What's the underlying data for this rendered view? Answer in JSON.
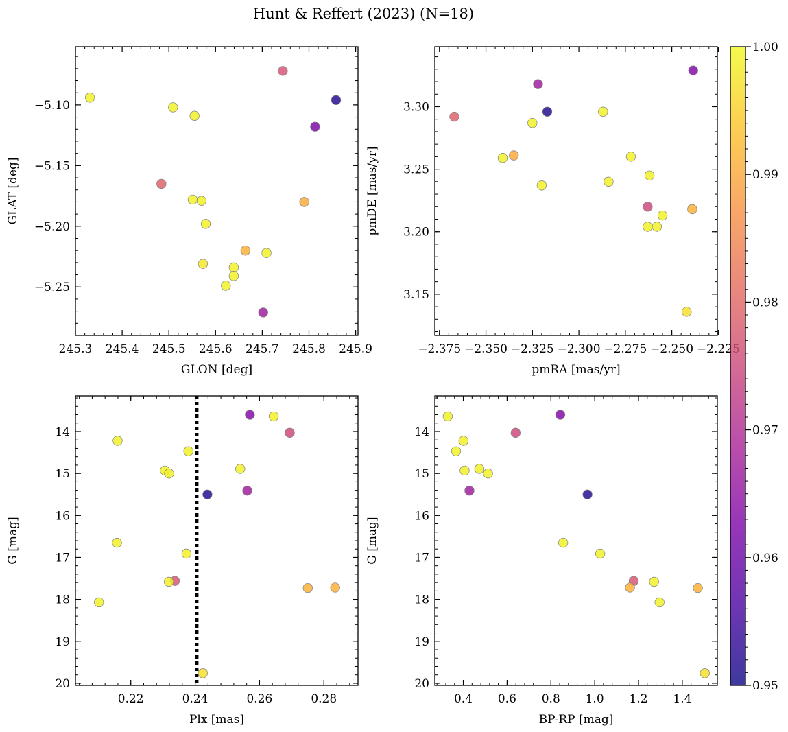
{
  "figure": {
    "title": "Hunt & Reffert (2023) (N=18)",
    "colorbar": {
      "cmap": "plasma",
      "vmin": 0.95,
      "vmax": 1.0,
      "ticks": [
        "0.95",
        "0.96",
        "0.97",
        "0.98",
        "0.99",
        "1.00"
      ]
    }
  },
  "chart_data": [
    {
      "type": "scatter",
      "id": "glon_glat",
      "title": "",
      "xlabel": "GLON [deg]",
      "ylabel": "GLAT [deg]",
      "xlim": [
        245.3,
        245.905
      ],
      "ylim": [
        -5.29,
        -5.052
      ],
      "y_inverted": false,
      "xticks": [
        245.3,
        245.4,
        245.5,
        245.6,
        245.7,
        245.8,
        245.9
      ],
      "xticklabels": [
        "245.3",
        "245.4",
        "245.5",
        "245.6",
        "245.7",
        "245.8",
        "245.9"
      ],
      "yticks": [
        -5.1,
        -5.15,
        -5.2,
        -5.25
      ],
      "yticklabels": [
        "−5.10",
        "−5.15",
        "−5.20",
        "−5.25"
      ],
      "points": [
        {
          "x": 245.331,
          "y": -5.094,
          "c": 0.999
        },
        {
          "x": 245.509,
          "y": -5.102,
          "c": 0.999
        },
        {
          "x": 245.555,
          "y": -5.109,
          "c": 0.999
        },
        {
          "x": 245.744,
          "y": -5.072,
          "c": 0.977
        },
        {
          "x": 245.858,
          "y": -5.096,
          "c": 0.952
        },
        {
          "x": 245.813,
          "y": -5.118,
          "c": 0.962
        },
        {
          "x": 245.484,
          "y": -5.165,
          "c": 0.979
        },
        {
          "x": 245.551,
          "y": -5.178,
          "c": 0.999
        },
        {
          "x": 245.57,
          "y": -5.179,
          "c": 0.999
        },
        {
          "x": 245.79,
          "y": -5.18,
          "c": 0.99
        },
        {
          "x": 245.579,
          "y": -5.198,
          "c": 0.999
        },
        {
          "x": 245.664,
          "y": -5.22,
          "c": 0.991
        },
        {
          "x": 245.709,
          "y": -5.222,
          "c": 0.999
        },
        {
          "x": 245.573,
          "y": -5.231,
          "c": 0.998
        },
        {
          "x": 245.639,
          "y": -5.234,
          "c": 0.999
        },
        {
          "x": 245.639,
          "y": -5.241,
          "c": 0.999
        },
        {
          "x": 245.622,
          "y": -5.249,
          "c": 0.999
        },
        {
          "x": 245.702,
          "y": -5.271,
          "c": 0.967
        }
      ]
    },
    {
      "type": "scatter",
      "id": "pmra_pmde",
      "title": "",
      "xlabel": "pmRA [mas/yr]",
      "ylabel": "pmDE [mas/yr]",
      "xlim": [
        -2.3775,
        -2.2255
      ],
      "ylim": [
        3.117,
        3.348
      ],
      "y_inverted": false,
      "xticks": [
        -2.375,
        -2.35,
        -2.325,
        -2.3,
        -2.275,
        -2.25,
        -2.225
      ],
      "xticklabels": [
        "−2.375",
        "−2.350",
        "−2.325",
        "−2.300",
        "−2.275",
        "−2.250",
        "−2.225"
      ],
      "yticks": [
        3.15,
        3.2,
        3.25,
        3.3
      ],
      "yticklabels": [
        "3.15",
        "3.20",
        "3.25",
        "3.30"
      ],
      "points": [
        {
          "x": -2.367,
          "y": 3.292,
          "c": 0.979
        },
        {
          "x": -2.341,
          "y": 3.259,
          "c": 0.999
        },
        {
          "x": -2.335,
          "y": 3.261,
          "c": 0.99
        },
        {
          "x": -2.325,
          "y": 3.287,
          "c": 0.999
        },
        {
          "x": -2.322,
          "y": 3.318,
          "c": 0.967
        },
        {
          "x": -2.32,
          "y": 3.237,
          "c": 0.999
        },
        {
          "x": -2.317,
          "y": 3.296,
          "c": 0.952
        },
        {
          "x": -2.287,
          "y": 3.296,
          "c": 0.999
        },
        {
          "x": -2.284,
          "y": 3.24,
          "c": 0.999
        },
        {
          "x": -2.272,
          "y": 3.26,
          "c": 0.999
        },
        {
          "x": -2.263,
          "y": 3.22,
          "c": 0.975
        },
        {
          "x": -2.262,
          "y": 3.245,
          "c": 0.999
        },
        {
          "x": -2.263,
          "y": 3.204,
          "c": 0.999
        },
        {
          "x": -2.258,
          "y": 3.204,
          "c": 0.999
        },
        {
          "x": -2.255,
          "y": 3.213,
          "c": 0.999
        },
        {
          "x": -2.242,
          "y": 3.136,
          "c": 0.997
        },
        {
          "x": -2.239,
          "y": 3.218,
          "c": 0.991
        },
        {
          "x": -2.2385,
          "y": 3.329,
          "c": 0.963
        }
      ]
    },
    {
      "type": "scatter",
      "id": "plx_g",
      "title": "",
      "xlabel": "Plx [mas]",
      "ylabel": "G [mag]",
      "xlim": [
        0.2028,
        0.2906
      ],
      "ylim": [
        13.15,
        20.05
      ],
      "y_inverted": true,
      "vline": {
        "x": 0.2405,
        "style": "dotted",
        "color": "#000000"
      },
      "xticks": [
        0.22,
        0.24,
        0.26,
        0.28
      ],
      "xticklabels": [
        "0.22",
        "0.24",
        "0.26",
        "0.28"
      ],
      "yticks": [
        14,
        15,
        16,
        17,
        18,
        19,
        20
      ],
      "yticklabels": [
        "14",
        "15",
        "16",
        "17",
        "18",
        "19",
        "20"
      ],
      "points": [
        {
          "x": 0.257,
          "y": 13.6,
          "c": 0.963
        },
        {
          "x": 0.2644,
          "y": 13.64,
          "c": 0.999
        },
        {
          "x": 0.2694,
          "y": 14.03,
          "c": 0.975
        },
        {
          "x": 0.2159,
          "y": 14.22,
          "c": 0.999
        },
        {
          "x": 0.2379,
          "y": 14.47,
          "c": 0.999
        },
        {
          "x": 0.2306,
          "y": 14.93,
          "c": 0.999
        },
        {
          "x": 0.2319,
          "y": 15.0,
          "c": 0.999
        },
        {
          "x": 0.254,
          "y": 14.89,
          "c": 0.999
        },
        {
          "x": 0.2438,
          "y": 15.5,
          "c": 0.952
        },
        {
          "x": 0.2562,
          "y": 15.41,
          "c": 0.967
        },
        {
          "x": 0.2157,
          "y": 16.65,
          "c": 0.999
        },
        {
          "x": 0.2373,
          "y": 16.91,
          "c": 0.999
        },
        {
          "x": 0.2337,
          "y": 17.56,
          "c": 0.977
        },
        {
          "x": 0.2318,
          "y": 17.58,
          "c": 0.999
        },
        {
          "x": 0.275,
          "y": 17.73,
          "c": 0.991
        },
        {
          "x": 0.2835,
          "y": 17.72,
          "c": 0.991
        },
        {
          "x": 0.2101,
          "y": 18.07,
          "c": 0.999
        },
        {
          "x": 0.2424,
          "y": 19.76,
          "c": 0.997
        }
      ]
    },
    {
      "type": "scatter",
      "id": "bprp_g",
      "title": "",
      "xlabel": "BP-RP [mag]",
      "ylabel": "G [mag]",
      "xlim": [
        0.27,
        1.56
      ],
      "ylim": [
        13.15,
        20.05
      ],
      "y_inverted": true,
      "xticks": [
        0.4,
        0.6,
        0.8,
        1.0,
        1.2,
        1.4
      ],
      "xticklabels": [
        "0.4",
        "0.6",
        "0.8",
        "1.0",
        "1.2",
        "1.4"
      ],
      "yticks": [
        14,
        15,
        16,
        17,
        18,
        19,
        20
      ],
      "yticklabels": [
        "14",
        "15",
        "16",
        "17",
        "18",
        "19",
        "20"
      ],
      "points": [
        {
          "x": 0.329,
          "y": 13.64,
          "c": 0.999
        },
        {
          "x": 0.843,
          "y": 13.6,
          "c": 0.963
        },
        {
          "x": 0.639,
          "y": 14.03,
          "c": 0.975
        },
        {
          "x": 0.401,
          "y": 14.22,
          "c": 0.999
        },
        {
          "x": 0.367,
          "y": 14.47,
          "c": 0.999
        },
        {
          "x": 0.406,
          "y": 14.93,
          "c": 0.999
        },
        {
          "x": 0.473,
          "y": 14.89,
          "c": 0.999
        },
        {
          "x": 0.513,
          "y": 15.0,
          "c": 0.999
        },
        {
          "x": 0.428,
          "y": 15.41,
          "c": 0.967
        },
        {
          "x": 0.967,
          "y": 15.5,
          "c": 0.952
        },
        {
          "x": 0.856,
          "y": 16.65,
          "c": 0.999
        },
        {
          "x": 1.025,
          "y": 16.91,
          "c": 0.999
        },
        {
          "x": 1.178,
          "y": 17.56,
          "c": 0.977
        },
        {
          "x": 1.271,
          "y": 17.58,
          "c": 0.999
        },
        {
          "x": 1.161,
          "y": 17.72,
          "c": 0.991
        },
        {
          "x": 1.471,
          "y": 17.73,
          "c": 0.991
        },
        {
          "x": 1.296,
          "y": 18.07,
          "c": 0.999
        },
        {
          "x": 1.503,
          "y": 19.76,
          "c": 0.997
        }
      ]
    }
  ]
}
